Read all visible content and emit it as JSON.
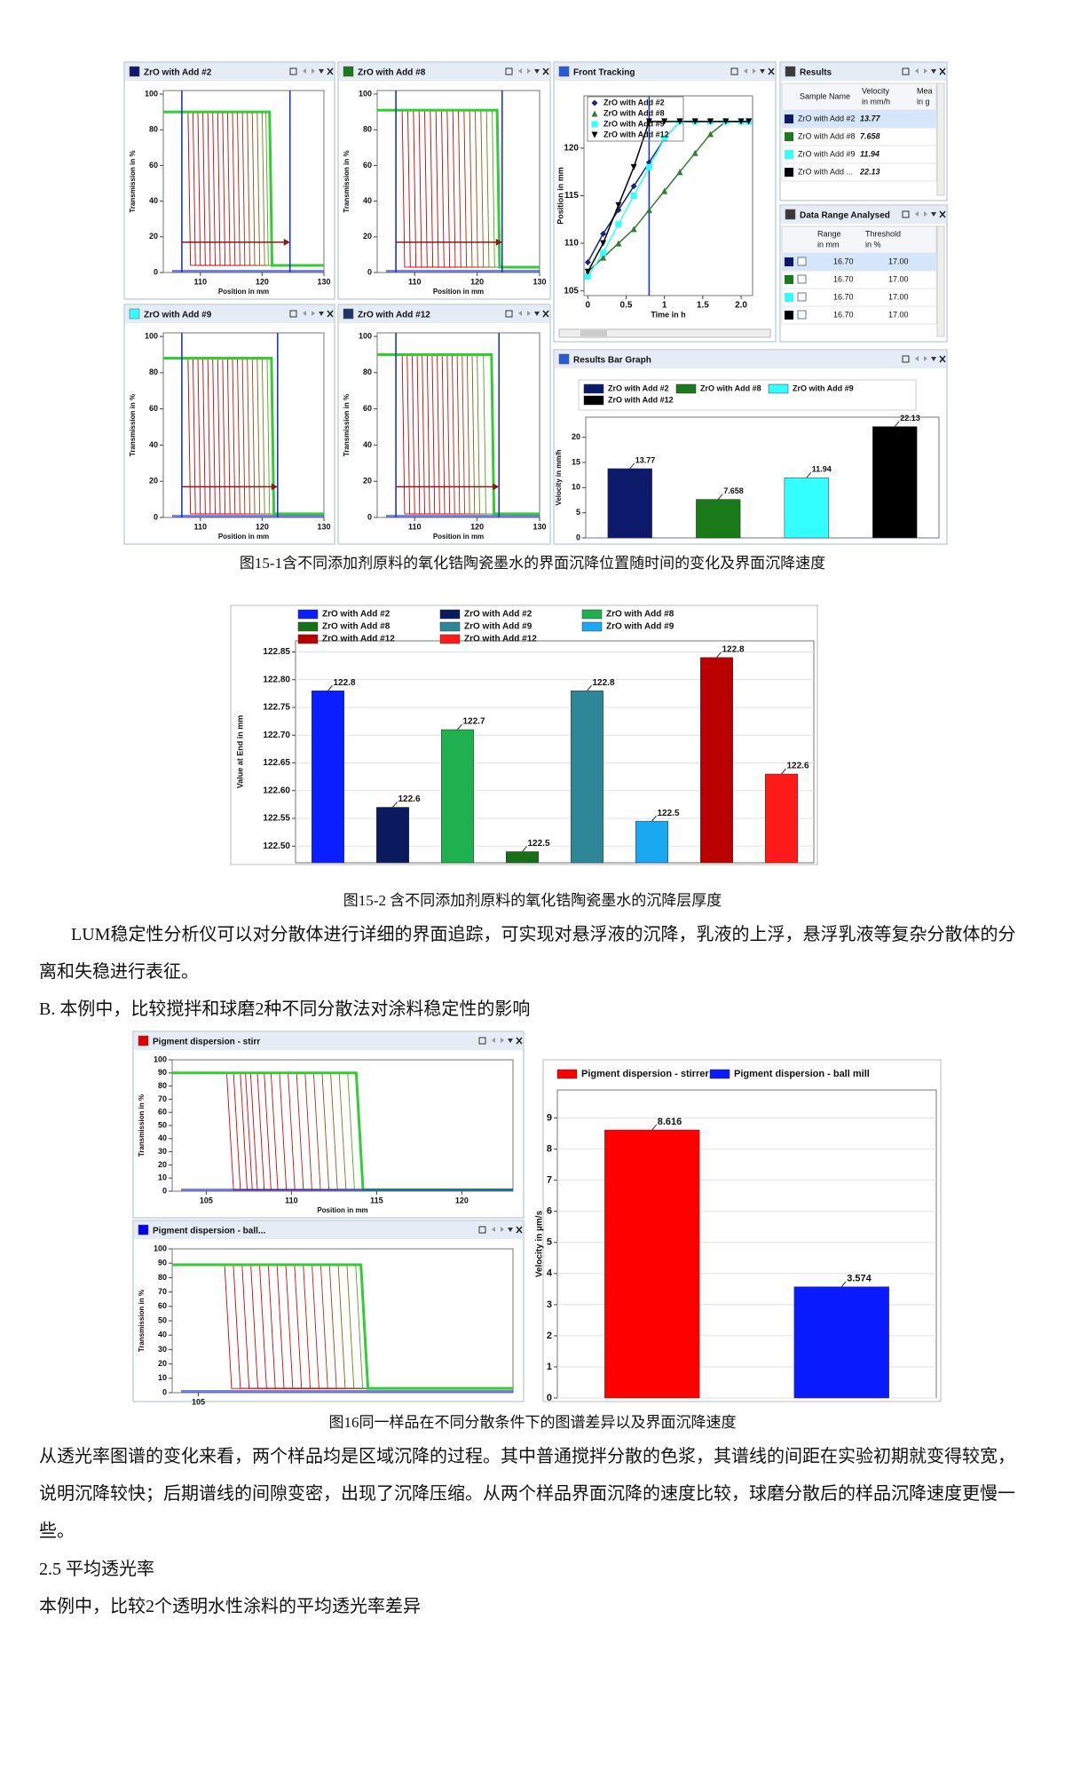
{
  "fig15_1": {
    "panels": [
      {
        "title": "ZrO with Add #2",
        "color": "#0d1a6b",
        "x_label": "Position in mm",
        "y_label": "Transmission in %",
        "xlim": [
          104,
          130
        ],
        "ylim": [
          0,
          102
        ],
        "xticks": [
          110,
          120,
          130
        ],
        "yticks": [
          0,
          20,
          40,
          60,
          80,
          100
        ],
        "plateau": 90,
        "bottom": 4,
        "fronts": [
          108,
          108.8,
          109.6,
          110.4,
          111.2,
          112,
          112.8,
          113.6,
          114.4,
          115.2,
          116,
          116.8,
          117.6,
          118.4,
          119.2,
          120,
          120.6,
          121.2
        ],
        "markers": [
          107,
          124.5
        ],
        "arrow_y": 17,
        "profile_colors": [
          "#cc0000",
          "#33cc33"
        ]
      },
      {
        "title": "ZrO with Add #8",
        "color": "#1a7a1a",
        "x_label": "Position in mm",
        "y_label": "Transmission in %",
        "xlim": [
          104,
          130
        ],
        "ylim": [
          0,
          102
        ],
        "xticks": [
          110,
          120,
          130
        ],
        "yticks": [
          0,
          20,
          40,
          60,
          80,
          100
        ],
        "plateau": 91,
        "bottom": 3,
        "fronts": [
          108,
          108.9,
          109.8,
          110.7,
          111.6,
          112.5,
          113.4,
          114.3,
          115.2,
          116.1,
          117,
          117.9,
          118.8,
          119.7,
          120.6,
          121.5,
          122.4,
          123.2
        ],
        "markers": [
          107,
          124
        ],
        "arrow_y": 17,
        "profile_colors": [
          "#cc0000",
          "#33cc33"
        ]
      },
      {
        "title": "ZrO with Add #9",
        "color": "#33ffff",
        "x_label": "Position in mm",
        "y_label": "Transmission in %",
        "xlim": [
          104,
          130
        ],
        "ylim": [
          0,
          102
        ],
        "xticks": [
          110,
          120,
          130
        ],
        "yticks": [
          0,
          20,
          40,
          60,
          80,
          100
        ],
        "plateau": 88,
        "bottom": 2,
        "fronts": [
          108,
          108.8,
          109.6,
          110.4,
          111.2,
          112,
          112.8,
          113.6,
          114.4,
          115.2,
          116,
          116.8,
          117.6,
          118.4,
          119.2,
          120,
          120.8,
          121.5
        ],
        "markers": [
          107,
          122.5
        ],
        "arrow_y": 17,
        "profile_colors": [
          "#cc0000",
          "#33cc33"
        ]
      },
      {
        "title": "ZrO with Add #12",
        "color": "#1f3566",
        "x_label": "Position in mm",
        "y_label": "Transmission in %",
        "xlim": [
          104,
          130
        ],
        "ylim": [
          0,
          102
        ],
        "xticks": [
          110,
          120,
          130
        ],
        "yticks": [
          0,
          20,
          40,
          60,
          80,
          100
        ],
        "plateau": 90,
        "bottom": 2,
        "fronts": [
          108,
          108.8,
          109.6,
          110.4,
          111.2,
          112,
          112.8,
          113.6,
          114.4,
          115.2,
          116,
          116.8,
          117.6,
          118.4,
          119.2,
          120,
          121,
          122.3
        ],
        "markers": [
          107,
          123.5
        ],
        "arrow_y": 17,
        "profile_colors": [
          "#cc0000",
          "#33cc33"
        ]
      }
    ],
    "front_tracking": {
      "title": "Front Tracking",
      "x_label": "Time in h",
      "y_label": "Position in mm",
      "xlim": [
        -0.05,
        2.15
      ],
      "ylim": [
        104.5,
        125.5
      ],
      "xticks": [
        0,
        0.5,
        1,
        1.5,
        {
          "value": 2,
          "label": "2.0"
        }
      ],
      "yticks": [
        105,
        110,
        115,
        120
      ],
      "cursor": 0.8,
      "x": [
        0,
        0.2,
        0.4,
        0.6,
        0.8,
        1.0,
        1.2,
        1.4,
        1.6,
        1.8,
        2.0,
        2.1
      ],
      "series": [
        {
          "name": "ZrO with Add #2",
          "color": "#1a237e",
          "marker": "diamond",
          "values": [
            108,
            111,
            113.5,
            116,
            118.5,
            121,
            122.8,
            122.8,
            122.8,
            122.8,
            122.8,
            122.8
          ]
        },
        {
          "name": "ZrO with Add #8",
          "color": "#2e7d32",
          "marker": "triangle",
          "values": [
            107,
            108.5,
            110,
            111.5,
            113.5,
            115.5,
            117.5,
            119.5,
            121.5,
            122.8,
            122.8,
            122.8
          ]
        },
        {
          "name": "ZrO with Add #9",
          "color": "#33ffff",
          "marker": "square",
          "values": [
            106.5,
            109,
            112,
            115,
            118,
            121,
            122.8,
            122.8,
            122.8,
            122.8,
            122.8,
            122.8
          ]
        },
        {
          "name": "ZrO with Add #12",
          "color": "#000000",
          "marker": "triangle-down",
          "values": [
            107,
            110,
            114,
            118,
            122.8,
            122.8,
            122.8,
            122.8,
            122.8,
            122.8,
            122.8,
            122.8
          ]
        }
      ]
    },
    "results": {
      "title": "Results",
      "columns": [
        [
          "Sample Name"
        ],
        [
          "Velocity",
          "in mm/h"
        ],
        [
          "Mea",
          "in g"
        ]
      ],
      "rows": [
        {
          "color": "#0d1a6b",
          "name": "ZrO with Add #2",
          "velocity": "13.77"
        },
        {
          "color": "#1a7a1a",
          "name": "ZrO with Add #8",
          "velocity": "7.658"
        },
        {
          "color": "#33ffff",
          "name": "ZrO with Add #9",
          "velocity": "11.94"
        },
        {
          "color": "#000000",
          "name": "ZrO with Add ...",
          "velocity": "22.13"
        }
      ]
    },
    "data_range": {
      "title": "Data Range Analysed",
      "columns": [
        [
          "Range",
          "in mm"
        ],
        [
          "Threshold",
          "in %"
        ]
      ],
      "rows": [
        {
          "color": "#0d1a6b",
          "values": [
            "16.70",
            "17.00"
          ]
        },
        {
          "color": "#1a7a1a",
          "values": [
            "16.70",
            "17.00"
          ]
        },
        {
          "color": "#33ffff",
          "values": [
            "16.70",
            "17.00"
          ]
        },
        {
          "color": "#000000",
          "values": [
            "16.70",
            "17.00"
          ]
        }
      ]
    },
    "bar_graph": {
      "type": "bar",
      "title": "Results Bar Graph",
      "y_label": "Velocity in mm/h",
      "ylim": [
        0,
        24
      ],
      "yticks": [
        0,
        5,
        10,
        15,
        20
      ],
      "grid": false,
      "series": [
        {
          "name": "ZrO with Add #2",
          "color": "#0d1a6b",
          "values": [
            13.77
          ]
        },
        {
          "name": "ZrO with Add #8",
          "color": "#1a7a1a",
          "values": [
            7.658
          ]
        },
        {
          "name": "ZrO with Add #9",
          "color": "#33ffff",
          "values": [
            11.94
          ]
        },
        {
          "name": "ZrO with Add #12",
          "color": "#000000",
          "values": [
            22.13
          ]
        }
      ]
    },
    "caption": "图15-1含不同添加剂原料的氧化锆陶瓷墨水的界面沉降位置随时间的变化及界面沉降速度"
  },
  "fig15_2": {
    "chart": {
      "type": "bar",
      "y_label": "Value at End in mm",
      "ylim": [
        122.47,
        122.87
      ],
      "grid": true,
      "yticks": [
        {
          "value": 122.5,
          "label": "122.50"
        },
        {
          "value": 122.55,
          "label": "122.55"
        },
        {
          "value": 122.6,
          "label": "122.60"
        },
        {
          "value": 122.65,
          "label": "122.65"
        },
        {
          "value": 122.7,
          "label": "122.70"
        },
        {
          "value": 122.75,
          "label": "122.75"
        },
        {
          "value": 122.8,
          "label": "122.80"
        },
        {
          "value": 122.85,
          "label": "122.85"
        }
      ],
      "series": [
        {
          "name": "ZrO with Add #2",
          "color": "#0a1fff",
          "values": [
            122.78
          ],
          "value_labels": [
            "122.8"
          ]
        },
        {
          "name": "ZrO with Add #2",
          "color": "#0b1a5e",
          "values": [
            122.57
          ],
          "value_labels": [
            "122.6"
          ]
        },
        {
          "name": "ZrO with Add #8",
          "color": "#1fb050",
          "values": [
            122.71
          ],
          "value_labels": [
            "122.7"
          ]
        },
        {
          "name": "ZrO with Add #8",
          "color": "#176f17",
          "values": [
            122.49
          ],
          "value_labels": [
            "122.5"
          ]
        },
        {
          "name": "ZrO with Add #9",
          "color": "#2e8699",
          "values": [
            122.78
          ],
          "value_labels": [
            "122.8"
          ]
        },
        {
          "name": "ZrO with Add #9",
          "color": "#1aa8f0",
          "values": [
            122.545
          ],
          "value_labels": [
            "122.5"
          ]
        },
        {
          "name": "ZrO with Add #12",
          "color": "#bb0000",
          "values": [
            122.84
          ],
          "value_labels": [
            "122.8"
          ]
        },
        {
          "name": "ZrO with Add #12",
          "color": "#ff1a1a",
          "values": [
            122.63
          ],
          "value_labels": [
            "122.6"
          ]
        }
      ]
    },
    "caption": "图15-2 含不同添加剂原料的氧化锆陶瓷墨水的沉降层厚度"
  },
  "text": {
    "para1": "LUM稳定性分析仪可以对分散体进行详细的界面追踪，可实现对悬浮液的沉降，乳液的上浮，悬浮乳液等复杂分散体的分离和失稳进行表征。",
    "para2": "B. 本例中，比较搅拌和球磨2种不同分散法对涂料稳定性的影响"
  },
  "fig16": {
    "panels": [
      {
        "title": "Pigment dispersion - stirr",
        "color": "#e00000",
        "x_label": "Position in mm",
        "y_label": "Transmission in %",
        "xlim": [
          103,
          123
        ],
        "ylim": [
          0,
          100
        ],
        "xticks": [
          105,
          110,
          115,
          120
        ],
        "yticks": [
          0,
          10,
          20,
          30,
          40,
          50,
          60,
          70,
          80,
          90,
          100
        ],
        "plateau": 90,
        "bottom": 1,
        "fronts": [
          106.2,
          106.6,
          107,
          107.3,
          107.6,
          108,
          108.4,
          108.8,
          109.3,
          109.8,
          110.3,
          110.8,
          111.3,
          111.8,
          112.3,
          112.8,
          113.3,
          113.8
        ],
        "profile_colors": [
          "#dd0000",
          "#33cc33"
        ]
      },
      {
        "title": "Pigment dispersion - ball...",
        "color": "#0000ee",
        "y_label": "Transmission in %",
        "xlim": [
          103.5,
          123
        ],
        "ylim": [
          0,
          100
        ],
        "xticks": [
          105
        ],
        "yticks": [
          0,
          10,
          20,
          30,
          40,
          50,
          60,
          70,
          80,
          90,
          100
        ],
        "plateau": 89,
        "bottom": 3,
        "fronts": [
          106.5,
          107,
          107.5,
          108,
          108.5,
          109,
          109.5,
          110,
          110.5,
          111,
          111.5,
          112,
          112.5,
          113,
          113.5,
          114,
          114.3
        ],
        "profile_colors": [
          "#dd0000",
          "#33cc33"
        ]
      }
    ],
    "chart": {
      "type": "bar",
      "y_label": "Velocity in µm/s",
      "ylim": [
        0,
        9.9
      ],
      "yticks": [
        0,
        1,
        2,
        3,
        4,
        5,
        6,
        7,
        8,
        9
      ],
      "grid": true,
      "series": [
        {
          "name": "Pigment dispersion - stirrer",
          "color": "#ff0000",
          "values": [
            8.616
          ]
        },
        {
          "name": "Pigment dispersion - ball mill",
          "color": "#0a1aff",
          "values": [
            3.574
          ]
        }
      ]
    },
    "caption": "图16同一样品在不同分散条件下的图谱差异以及界面沉降速度"
  },
  "text2": {
    "para3": "从透光率图谱的变化来看，两个样品均是区域沉降的过程。其中普通搅拌分散的色浆，其谱线的间距在实验初期就变得较宽，说明沉降较快；后期谱线的间隙变密，出现了沉降压缩。从两个样品界面沉降的速度比较，球磨分散后的样品沉降速度更慢一些。",
    "heading": "2.5 平均透光率",
    "para4": "本例中，比较2个透明水性涂料的平均透光率差异"
  }
}
